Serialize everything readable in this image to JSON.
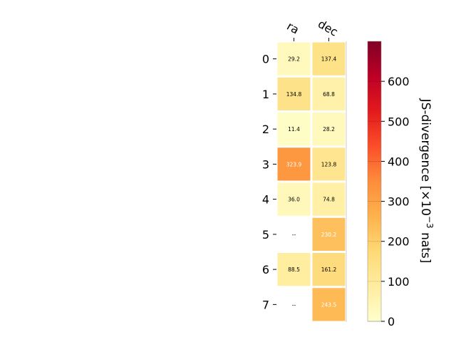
{
  "chart_data": {
    "type": "heatmap",
    "columns": [
      "ra",
      "dec"
    ],
    "rows": [
      "0",
      "1",
      "2",
      "3",
      "4",
      "5",
      "6",
      "7"
    ],
    "values": [
      [
        29.2,
        137.4
      ],
      [
        134.8,
        68.8
      ],
      [
        11.4,
        28.2
      ],
      [
        323.9,
        123.8
      ],
      [
        36.0,
        74.8
      ],
      [
        null,
        230.2
      ],
      [
        88.5,
        161.2
      ],
      [
        null,
        243.5
      ]
    ],
    "cell_labels": [
      [
        "29.2",
        "137.4"
      ],
      [
        "134.8",
        "68.8"
      ],
      [
        "11.4",
        "28.2"
      ],
      [
        "323.9",
        "123.8"
      ],
      [
        "36.0",
        "74.8"
      ],
      [
        "--",
        "230.2"
      ],
      [
        "88.5",
        "161.2"
      ],
      [
        "--",
        "243.5"
      ]
    ],
    "colormap": "YlOrRd",
    "colorbar": {
      "label_text": "JS-divergence [×10",
      "label_exp": "−3",
      "label_tail": " nats]",
      "range": [
        0,
        700
      ],
      "ticks": [
        "0",
        "100",
        "200",
        "300",
        "400",
        "500",
        "600"
      ]
    },
    "grid": false,
    "colors": {
      "missing": "#ffffff",
      "separator": "#ffffff"
    }
  }
}
